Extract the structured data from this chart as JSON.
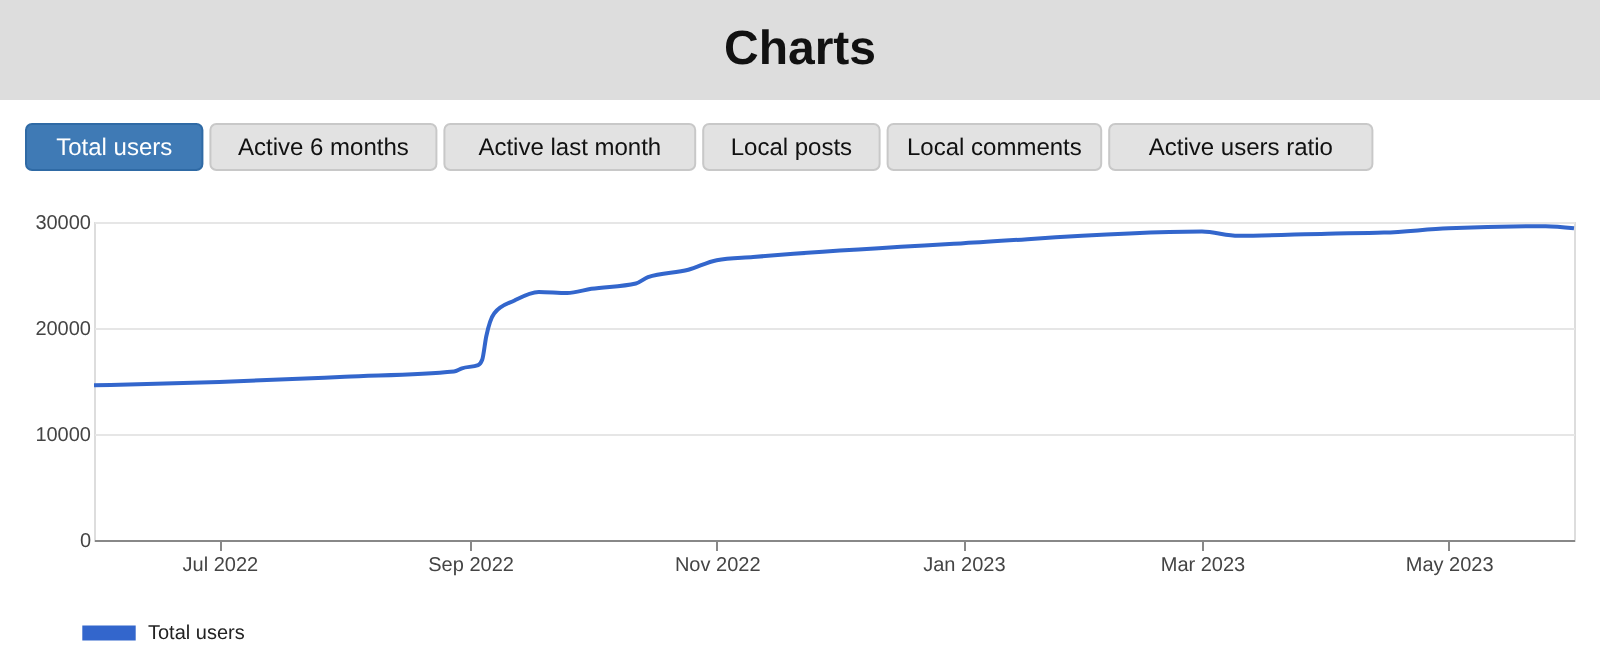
{
  "chart_data": {
    "type": "line",
    "title": "Charts",
    "annotations": [
      "Total users",
      "Active 6 months",
      "Active last month",
      "Local posts",
      "Local comments",
      "Active users ratio"
    ],
    "x": [
      "2022-05-31",
      "2022-07-01",
      "2022-08-01",
      "2022-08-28",
      "2022-08-30",
      "2022-09-03",
      "2022-09-04",
      "2022-09-05",
      "2022-09-07",
      "2022-09-12",
      "2022-09-18",
      "2022-09-25",
      "2022-10-01",
      "2022-10-12",
      "2022-10-15",
      "2022-10-25",
      "2022-11-01",
      "2022-11-10",
      "2022-11-20",
      "2023-01-01",
      "2023-03-01",
      "2023-03-10",
      "2023-04-01",
      "2023-04-15",
      "2023-05-01",
      "2023-05-25",
      "2023-06-01"
    ],
    "series": [
      {
        "name": "Total users",
        "color": "#3366cc",
        "values": [
          14600,
          14900,
          15400,
          15900,
          16200,
          16500,
          17000,
          19200,
          21400,
          22600,
          23400,
          23300,
          23700,
          24200,
          24800,
          25500,
          26400,
          26700,
          27000,
          28000,
          29100,
          28700,
          28900,
          29000,
          29400,
          29600,
          29400
        ]
      }
    ],
    "xlim": [
      "2022-05-31",
      "2023-06-01"
    ],
    "xticks": [
      {
        "value": "2022-07-01",
        "label": "Jul 2022"
      },
      {
        "value": "2022-09-01",
        "label": "Sep 2022"
      },
      {
        "value": "2022-11-01",
        "label": "Nov 2022"
      },
      {
        "value": "2023-01-01",
        "label": "Jan 2023"
      },
      {
        "value": "2023-03-01",
        "label": "Mar 2023"
      },
      {
        "value": "2023-05-01",
        "label": "May 2023"
      }
    ],
    "ylim": [
      0,
      30000
    ],
    "yticks": [
      0,
      10000,
      20000,
      30000
    ],
    "grid": "y",
    "legend": "bottom",
    "marker": "none",
    "line_style": "solid"
  }
}
